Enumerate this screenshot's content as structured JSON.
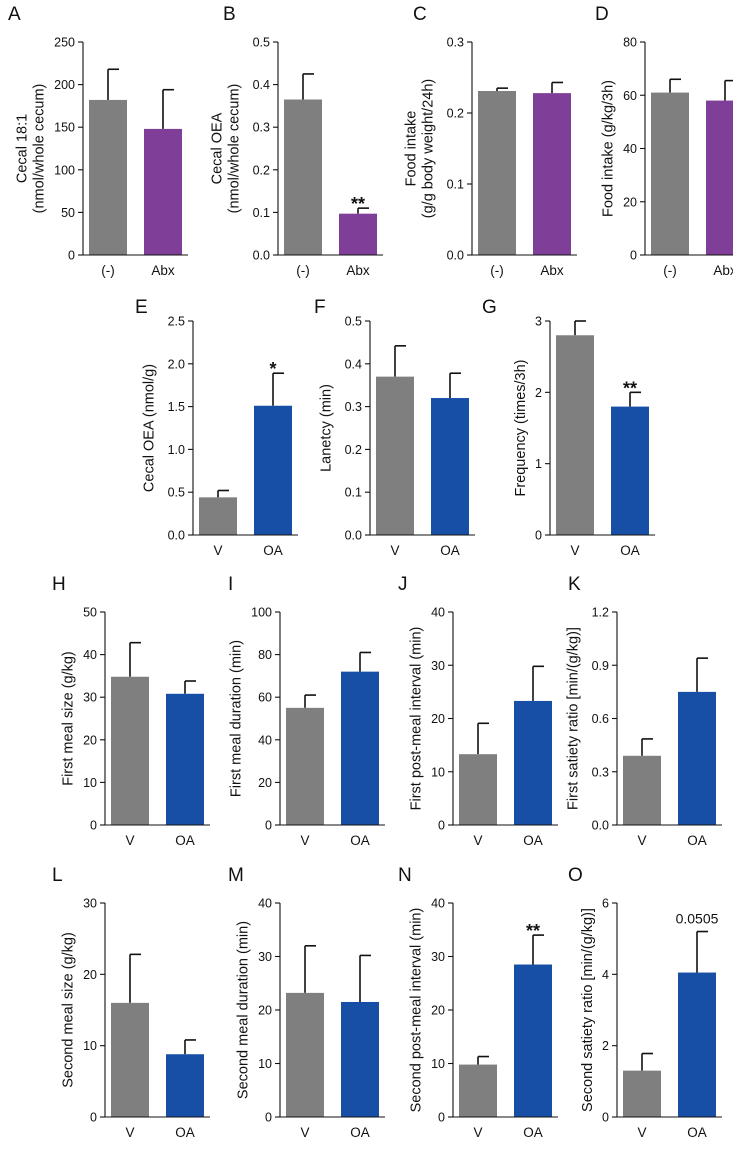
{
  "colors": {
    "control": "#7f7f7f",
    "abx": "#7f3f98",
    "oa": "#174ea6",
    "axis": "#111111"
  },
  "chart_data": [
    {
      "panel": "A",
      "type": "bar",
      "ylabel": "Cecal 18:1 (nmol/whole cecum)",
      "ylabel_lines": [
        "Cecal 18:1",
        "(nmol/whole cecum)"
      ],
      "categories": [
        "(-)",
        "Abx"
      ],
      "values": [
        182,
        148
      ],
      "errors": [
        36,
        46
      ],
      "ylim": [
        0,
        250
      ],
      "yticks": [
        "0",
        "50",
        "100",
        "150",
        "200",
        "250"
      ],
      "sig": [
        "",
        ""
      ]
    },
    {
      "panel": "B",
      "type": "bar",
      "ylabel": "Cecal OEA (nmol/whole cecum)",
      "ylabel_lines": [
        "Cecal OEA",
        "(nmol/whole cecum)"
      ],
      "categories": [
        "(-)",
        "Abx"
      ],
      "values": [
        0.365,
        0.097
      ],
      "errors": [
        0.06,
        0.013
      ],
      "ylim": [
        0,
        0.5
      ],
      "yticks": [
        "0.0",
        "0.1",
        "0.2",
        "0.3",
        "0.4",
        "0.5"
      ],
      "sig": [
        "",
        "**"
      ]
    },
    {
      "panel": "C",
      "type": "bar",
      "ylabel": "Food intake (g/g body weight/24h)",
      "ylabel_lines": [
        "Food intake",
        "(g/g body weight/24h)"
      ],
      "categories": [
        "(-)",
        "Abx"
      ],
      "values": [
        0.231,
        0.228
      ],
      "errors": [
        0.004,
        0.015
      ],
      "ylim": [
        0,
        0.3
      ],
      "yticks": [
        "0.0",
        "0.1",
        "0.2",
        "0.3"
      ],
      "sig": [
        "",
        ""
      ]
    },
    {
      "panel": "D",
      "type": "bar",
      "ylabel": "Food intake (g/kg/3h)",
      "ylabel_lines": [
        "Food intake (g/kg/3h)"
      ],
      "categories": [
        "(-)",
        "Abx"
      ],
      "values": [
        61,
        58
      ],
      "errors": [
        5,
        7.5
      ],
      "ylim": [
        0,
        80
      ],
      "yticks": [
        "0",
        "20",
        "40",
        "60",
        "80"
      ],
      "sig": [
        "",
        ""
      ]
    },
    {
      "panel": "E",
      "type": "bar",
      "ylabel": "Cecal OEA (nmol/g)",
      "ylabel_lines": [
        "Cecal OEA (nmol/g)"
      ],
      "categories": [
        "V",
        "OA"
      ],
      "values": [
        0.44,
        1.51
      ],
      "errors": [
        0.08,
        0.38
      ],
      "ylim": [
        0,
        2.5
      ],
      "yticks": [
        "0.0",
        "0.5",
        "1.0",
        "1.5",
        "2.0",
        "2.5"
      ],
      "sig": [
        "",
        "*"
      ]
    },
    {
      "panel": "F",
      "type": "bar",
      "ylabel": "Lanetcy (min)",
      "ylabel_lines": [
        "Lanetcy (min)"
      ],
      "categories": [
        "V",
        "OA"
      ],
      "values": [
        0.37,
        0.32
      ],
      "errors": [
        0.072,
        0.058
      ],
      "ylim": [
        0,
        0.5
      ],
      "yticks": [
        "0.0",
        "0.1",
        "0.2",
        "0.3",
        "0.4",
        "0.5"
      ],
      "sig": [
        "",
        ""
      ]
    },
    {
      "panel": "G",
      "type": "bar",
      "ylabel": "Frequency (times/3h)",
      "ylabel_lines": [
        "Frequency (times/3h)"
      ],
      "categories": [
        "V",
        "OA"
      ],
      "values": [
        2.8,
        1.8
      ],
      "errors": [
        0.2,
        0.2
      ],
      "ylim": [
        0,
        3
      ],
      "yticks": [
        "0",
        "1",
        "2",
        "3"
      ],
      "sig": [
        "",
        "**"
      ]
    },
    {
      "panel": "H",
      "type": "bar",
      "ylabel": "First meal size (g/kg)",
      "ylabel_lines": [
        "First meal size (g/kg)"
      ],
      "categories": [
        "V",
        "OA"
      ],
      "values": [
        34.8,
        30.8
      ],
      "errors": [
        8,
        3
      ],
      "ylim": [
        0,
        50
      ],
      "yticks": [
        "0",
        "10",
        "20",
        "30",
        "40",
        "50"
      ],
      "sig": [
        "",
        ""
      ]
    },
    {
      "panel": "I",
      "type": "bar",
      "ylabel": "First meal duration (min)",
      "ylabel_lines": [
        "First meal duration (min)"
      ],
      "categories": [
        "V",
        "OA"
      ],
      "values": [
        55,
        72
      ],
      "errors": [
        6,
        9
      ],
      "ylim": [
        0,
        100
      ],
      "yticks": [
        "0",
        "20",
        "40",
        "60",
        "80",
        "100"
      ],
      "sig": [
        "",
        ""
      ]
    },
    {
      "panel": "J",
      "type": "bar",
      "ylabel": "First post-meal interval (min)",
      "ylabel_lines": [
        "First post-meal interval (min)"
      ],
      "categories": [
        "V",
        "OA"
      ],
      "values": [
        13.3,
        23.3
      ],
      "errors": [
        5.8,
        6.5
      ],
      "ylim": [
        0,
        40
      ],
      "yticks": [
        "0",
        "10",
        "20",
        "30",
        "40"
      ],
      "sig": [
        "",
        ""
      ]
    },
    {
      "panel": "K",
      "type": "bar",
      "ylabel": "First satiety ratio [min/(g/kg)]",
      "ylabel_lines": [
        "First satiety ratio [min/(g/kg)]"
      ],
      "categories": [
        "V",
        "OA"
      ],
      "values": [
        0.39,
        0.75
      ],
      "errors": [
        0.095,
        0.19
      ],
      "ylim": [
        0,
        1.2
      ],
      "yticks": [
        "0.0",
        "0.3",
        "0.6",
        "0.9",
        "1.2"
      ],
      "sig": [
        "",
        ""
      ]
    },
    {
      "panel": "L",
      "type": "bar",
      "ylabel": "Second meal size (g/kg)",
      "ylabel_lines": [
        "Second meal size (g/kg)"
      ],
      "categories": [
        "V",
        "OA"
      ],
      "values": [
        16,
        8.8
      ],
      "errors": [
        6.8,
        2
      ],
      "ylim": [
        0,
        30
      ],
      "yticks": [
        "0",
        "10",
        "20",
        "30"
      ],
      "sig": [
        "",
        ""
      ]
    },
    {
      "panel": "M",
      "type": "bar",
      "ylabel": "Second meal duration (min)",
      "ylabel_lines": [
        "Second meal duration (min)"
      ],
      "categories": [
        "V",
        "OA"
      ],
      "values": [
        23.2,
        21.5
      ],
      "errors": [
        8.8,
        8.7
      ],
      "ylim": [
        0,
        40
      ],
      "yticks": [
        "0",
        "10",
        "20",
        "30",
        "40"
      ],
      "sig": [
        "",
        ""
      ]
    },
    {
      "panel": "N",
      "type": "bar",
      "ylabel": "Second post-meal interval (min)",
      "ylabel_lines": [
        "Second post-meal interval (min)"
      ],
      "categories": [
        "V",
        "OA"
      ],
      "values": [
        9.8,
        28.5
      ],
      "errors": [
        1.5,
        5.5
      ],
      "ylim": [
        0,
        40
      ],
      "yticks": [
        "0",
        "10",
        "20",
        "30",
        "40"
      ],
      "sig": [
        "",
        "**"
      ]
    },
    {
      "panel": "O",
      "type": "bar",
      "ylabel": "Second satiety ratio [min/(g/kg)]",
      "ylabel_lines": [
        "Second satiety ratio [min/(g/kg)]"
      ],
      "categories": [
        "V",
        "OA"
      ],
      "values": [
        1.3,
        4.05
      ],
      "errors": [
        0.48,
        1.15
      ],
      "ylim": [
        0,
        6
      ],
      "yticks": [
        "0",
        "2",
        "4",
        "6"
      ],
      "sig": [
        "",
        "0.0505"
      ]
    }
  ]
}
